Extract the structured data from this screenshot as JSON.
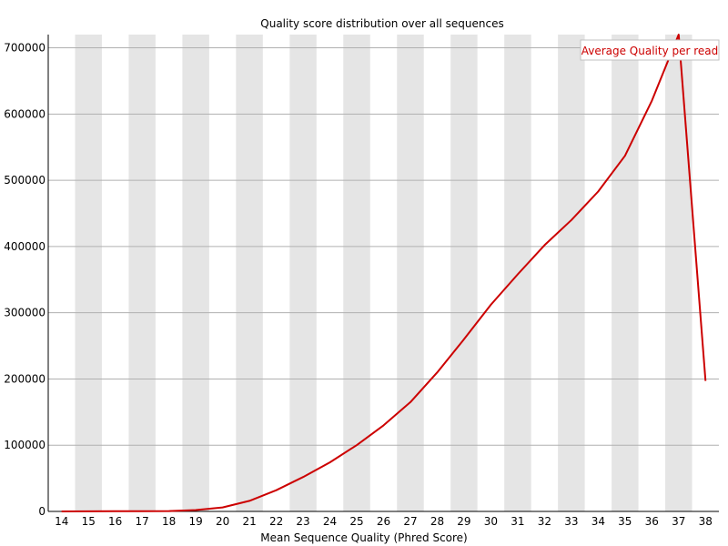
{
  "chart_data": {
    "type": "line",
    "title": "Quality score distribution over all sequences",
    "xlabel": "Mean Sequence Quality (Phred Score)",
    "ylabel": "",
    "x": [
      14,
      15,
      16,
      17,
      18,
      19,
      20,
      21,
      22,
      23,
      24,
      25,
      26,
      27,
      28,
      29,
      30,
      31,
      32,
      33,
      34,
      35,
      36,
      37,
      38
    ],
    "ylim": [
      0,
      720000
    ],
    "yticks": [
      0,
      100000,
      200000,
      300000,
      400000,
      500000,
      600000,
      700000
    ],
    "series": [
      {
        "name": "Average Quality per read",
        "color": "#cc0000",
        "values": [
          0,
          200,
          300,
          300,
          500,
          2000,
          6000,
          16000,
          32000,
          52000,
          74000,
          100000,
          130000,
          165000,
          210000,
          260000,
          312000,
          358000,
          402000,
          440000,
          483000,
          537000,
          620000,
          720000,
          197000
        ]
      }
    ],
    "grid": true,
    "legend_position": "top-right",
    "band_color": "#e5e5e5",
    "grid_color": "#b0b0b0"
  }
}
